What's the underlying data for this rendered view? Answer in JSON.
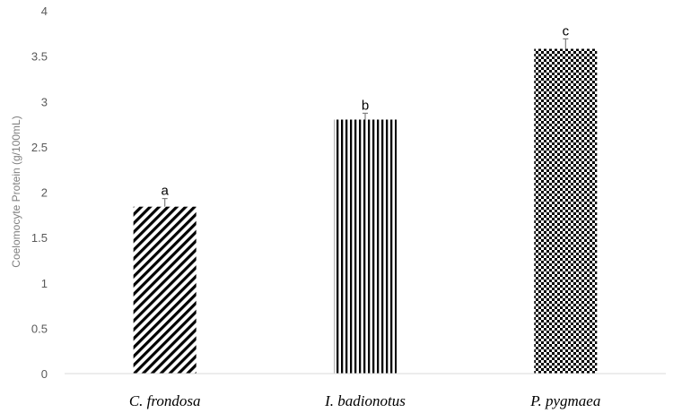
{
  "chart_data": {
    "type": "bar",
    "categories": [
      "C. frondosa",
      "I. badionotus",
      "P. pygmaea"
    ],
    "values": [
      1.84,
      2.8,
      3.58
    ],
    "errors": [
      0.09,
      0.07,
      0.11
    ],
    "significance_labels": [
      "a",
      "b",
      "c"
    ],
    "patterns": [
      "diagonal-stripes",
      "vertical-stripes",
      "checkerboard"
    ],
    "title": "",
    "xlabel": "",
    "ylabel": "Coelomocyte Protein (g/100mL)",
    "ylim": [
      0,
      4
    ],
    "yticks": [
      "0",
      "0.5",
      "1",
      "1.5",
      "2",
      "2.5",
      "3",
      "3.5",
      "4"
    ],
    "grid": false,
    "legend": "none",
    "colors": {
      "bar": "#000000",
      "axis": "#d9d9d9",
      "tick_text": "#595959",
      "axis_title": "#7f7f7f"
    }
  }
}
